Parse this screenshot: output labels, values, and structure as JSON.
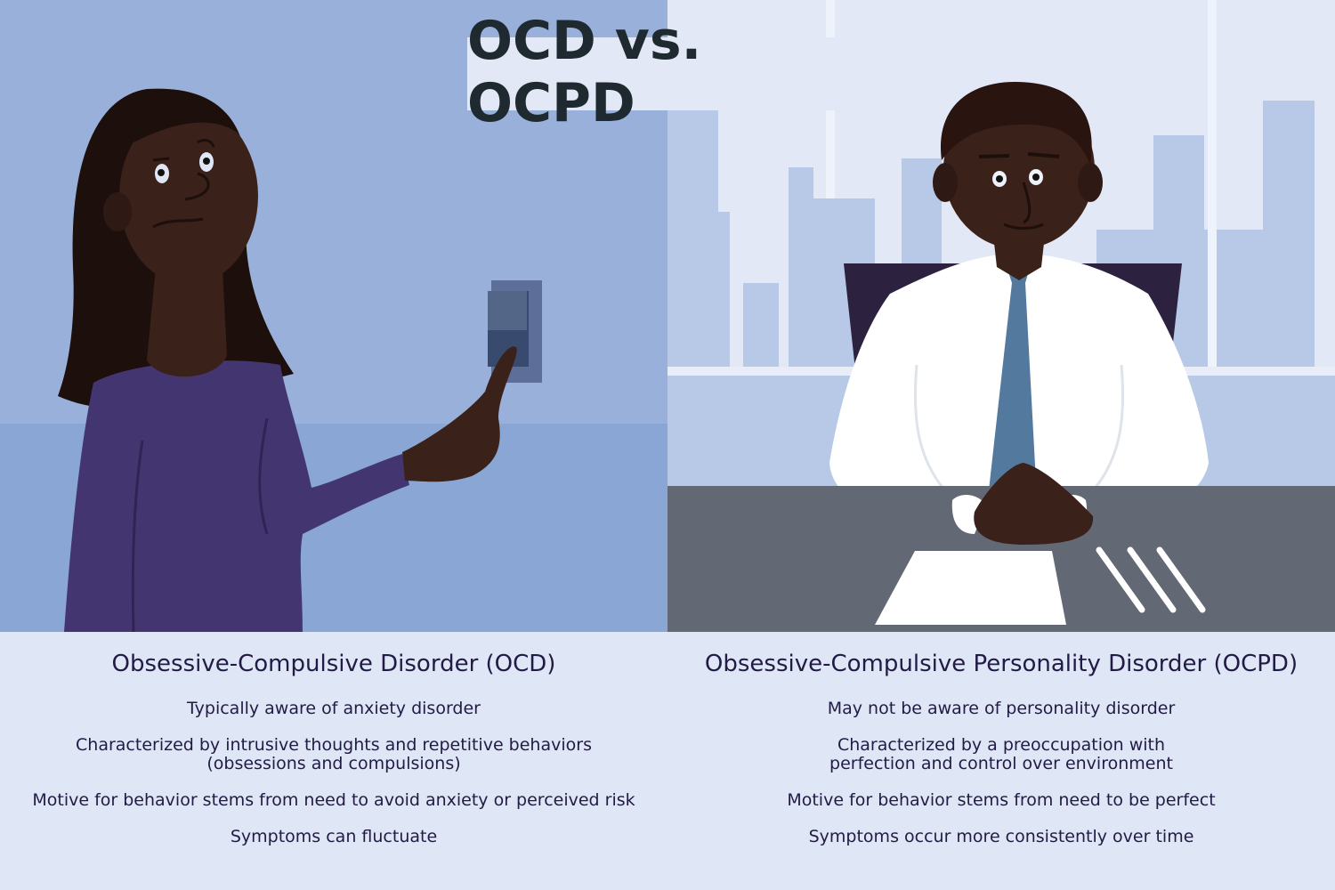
{
  "title": "OCD vs. OCPD",
  "colors": {
    "left_bg": "#99b1da",
    "left_floor": "#8aa6d4",
    "right_bg": "#e2e8f6",
    "buildings": "#b7c9e7",
    "desk": "#626975",
    "sweater": "#433670",
    "skin": "#3a2119",
    "hair": "#1d0f0c",
    "tie": "#537a9e",
    "text_bg": "#dfe6f5",
    "text": "#221b45"
  },
  "icons": {
    "left": "woman-touching-light-switch-illustration",
    "right": "man-at-desk-illustration"
  },
  "left": {
    "heading": "Obsessive-Compulsive Disorder (OCD)",
    "items": [
      "Typically aware of anxiety disorder",
      "Characterized by intrusive thoughts and repetitive behaviors\n(obsessions and compulsions)",
      "Motive for behavior stems from need to avoid anxiety or perceived risk",
      "Symptoms can fluctuate"
    ]
  },
  "right": {
    "heading": "Obsessive-Compulsive Personality Disorder (OCPD)",
    "items": [
      "May not be aware of personality disorder",
      "Characterized by a preoccupation with\nperfection and control over environment",
      "Motive for behavior stems from need to be perfect",
      "Symptoms occur more consistently over time"
    ]
  }
}
